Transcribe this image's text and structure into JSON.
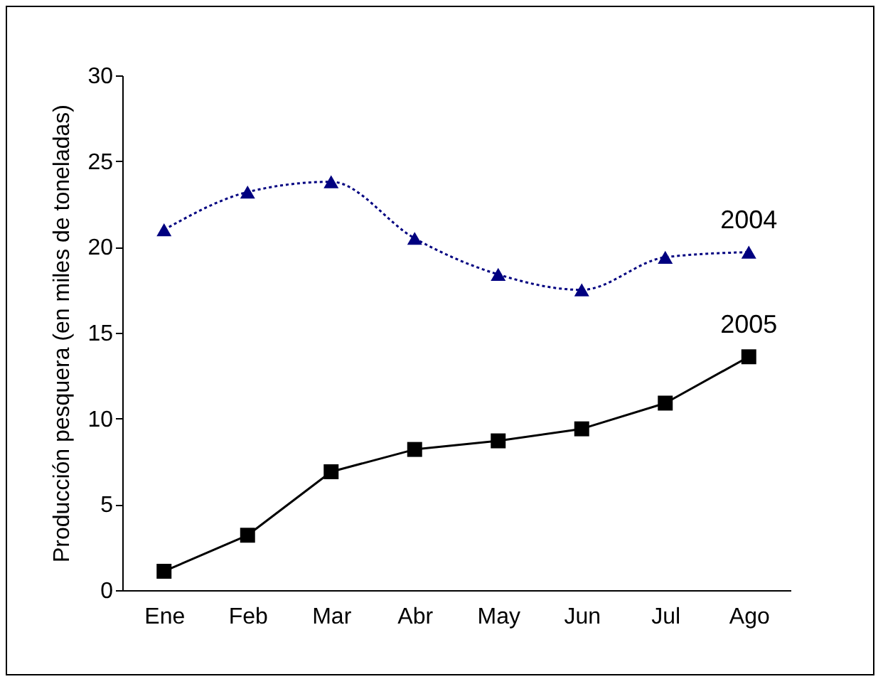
{
  "chart_data": {
    "type": "line",
    "ylabel": "Producción pesquera (en miles de toneladas)",
    "categories": [
      "Ene",
      "Feb",
      "Mar",
      "Abr",
      "May",
      "Jun",
      "Jul",
      "Ago"
    ],
    "series": [
      {
        "name": "2004",
        "color": "#000080",
        "marker": "triangle",
        "line_style": "dotted",
        "values": [
          21.0,
          23.2,
          23.8,
          20.5,
          18.4,
          17.5,
          19.4,
          19.7
        ]
      },
      {
        "name": "2005",
        "color": "#000000",
        "marker": "square",
        "line_style": "solid",
        "values": [
          1.1,
          3.2,
          6.9,
          8.2,
          8.7,
          9.4,
          10.9,
          13.6
        ]
      }
    ],
    "ylim": [
      0,
      30
    ],
    "yticks": [
      0,
      5,
      10,
      15,
      20,
      25,
      30
    ],
    "grid": false
  }
}
